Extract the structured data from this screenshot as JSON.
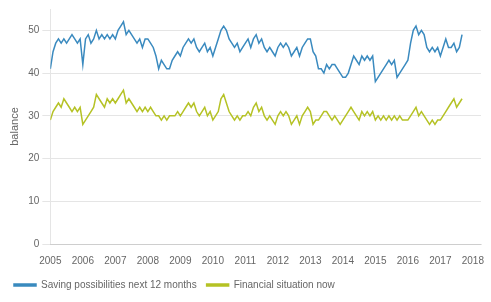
{
  "chart_data": {
    "type": "line",
    "y_label": "balance",
    "xlim": [
      2005.0,
      2018.25
    ],
    "xticks": [
      2005,
      2006,
      2007,
      2008,
      2009,
      2010,
      2011,
      2012,
      2013,
      2014,
      2015,
      2016,
      2017,
      2018
    ],
    "ylim": [
      0,
      55
    ],
    "yticks": [
      0,
      10,
      20,
      30,
      40,
      50
    ],
    "grid": "y",
    "legend": "lower left",
    "x": [
      2005,
      2005.083333,
      2005.166667,
      2005.25,
      2005.333333,
      2005.416667,
      2005.5,
      2005.583333,
      2005.666667,
      2005.75,
      2005.833333,
      2005.916667,
      2006,
      2006.083333,
      2006.166667,
      2006.25,
      2006.333333,
      2006.416667,
      2006.5,
      2006.583333,
      2006.666667,
      2006.75,
      2006.833333,
      2006.916667,
      2007,
      2007.083333,
      2007.166667,
      2007.25,
      2007.333333,
      2007.416667,
      2007.5,
      2007.583333,
      2007.666667,
      2007.75,
      2007.833333,
      2007.916667,
      2008,
      2008.083333,
      2008.166667,
      2008.25,
      2008.333333,
      2008.416667,
      2008.5,
      2008.583333,
      2008.666667,
      2008.75,
      2008.833333,
      2008.916667,
      2009,
      2009.083333,
      2009.166667,
      2009.25,
      2009.333333,
      2009.416667,
      2009.5,
      2009.583333,
      2009.666667,
      2009.75,
      2009.833333,
      2009.916667,
      2010,
      2010.083333,
      2010.166667,
      2010.25,
      2010.333333,
      2010.416667,
      2010.5,
      2010.583333,
      2010.666667,
      2010.75,
      2010.833333,
      2010.916667,
      2011,
      2011.083333,
      2011.166667,
      2011.25,
      2011.333333,
      2011.416667,
      2011.5,
      2011.583333,
      2011.666667,
      2011.75,
      2011.833333,
      2011.916667,
      2012,
      2012.083333,
      2012.166667,
      2012.25,
      2012.333333,
      2012.416667,
      2012.5,
      2012.583333,
      2012.666667,
      2012.75,
      2012.833333,
      2012.916667,
      2013,
      2013.083333,
      2013.166667,
      2013.25,
      2013.333333,
      2013.416667,
      2013.5,
      2013.583333,
      2013.666667,
      2013.75,
      2013.833333,
      2013.916667,
      2014,
      2014.083333,
      2014.166667,
      2014.25,
      2014.333333,
      2014.416667,
      2014.5,
      2014.583333,
      2014.666667,
      2014.75,
      2014.833333,
      2014.916667,
      2015,
      2015.083333,
      2015.166667,
      2015.25,
      2015.333333,
      2015.416667,
      2015.5,
      2015.583333,
      2015.666667,
      2015.75,
      2015.833333,
      2015.916667,
      2016,
      2016.083333,
      2016.166667,
      2016.25,
      2016.333333,
      2016.416667,
      2016.5,
      2016.583333,
      2016.666667,
      2016.75,
      2016.833333,
      2016.916667,
      2017,
      2017.083333,
      2017.166667,
      2017.25,
      2017.333333,
      2017.416667,
      2017.5,
      2017.583333,
      2017.666667
    ],
    "series": [
      {
        "name": "Saving possibilities next 12 months",
        "color": "#3a8abf",
        "values": [
          41,
          45,
          47,
          48,
          47,
          48,
          47,
          48,
          49,
          48,
          47,
          48,
          42,
          48,
          49,
          47,
          48,
          50,
          48,
          49,
          48,
          49,
          48,
          49,
          48,
          50,
          51,
          52,
          49,
          50,
          49,
          48,
          47,
          48,
          46,
          48,
          48,
          47,
          46,
          44,
          41,
          43,
          42,
          41,
          41,
          43,
          44,
          45,
          44,
          46,
          47,
          48,
          47,
          48,
          46,
          45,
          46,
          47,
          45,
          46,
          44,
          46,
          48,
          50,
          51,
          50,
          48,
          47,
          46,
          47,
          45,
          46,
          47,
          48,
          46,
          48,
          49,
          47,
          48,
          46,
          45,
          46,
          45,
          44,
          46,
          47,
          46,
          47,
          46,
          44,
          45,
          46,
          44,
          46,
          47,
          48,
          48,
          45,
          44,
          41,
          41,
          40,
          42,
          41,
          42,
          42,
          41,
          40,
          39,
          39,
          40,
          42,
          44,
          43,
          42,
          44,
          43,
          44,
          43,
          44,
          38,
          39,
          40,
          41,
          42,
          43,
          42,
          43,
          39,
          40,
          41,
          42,
          43,
          47,
          50,
          51,
          49,
          50,
          49,
          46,
          45,
          46,
          45,
          46,
          44,
          46,
          48,
          46,
          46,
          47,
          45,
          46,
          49
        ]
      },
      {
        "name": "Financial situation now",
        "color": "#b5c225",
        "values": [
          29,
          31,
          32,
          33,
          32,
          34,
          33,
          32,
          31,
          32,
          31,
          32,
          28,
          29,
          30,
          31,
          32,
          35,
          34,
          33,
          32,
          34,
          33,
          34,
          33,
          34,
          35,
          36,
          33,
          34,
          33,
          32,
          31,
          32,
          31,
          32,
          31,
          32,
          31,
          30,
          30,
          29,
          30,
          29,
          30,
          30,
          30,
          31,
          30,
          31,
          32,
          33,
          32,
          33,
          31,
          30,
          31,
          32,
          30,
          31,
          29,
          30,
          31,
          34,
          35,
          33,
          31,
          30,
          29,
          30,
          29,
          30,
          30,
          31,
          30,
          32,
          33,
          31,
          32,
          30,
          29,
          30,
          29,
          28,
          30,
          31,
          30,
          31,
          30,
          28,
          29,
          30,
          28,
          30,
          31,
          32,
          31,
          28,
          29,
          29,
          30,
          31,
          31,
          30,
          29,
          30,
          29,
          28,
          29,
          30,
          31,
          32,
          31,
          30,
          29,
          31,
          30,
          31,
          30,
          31,
          29,
          30,
          29,
          30,
          29,
          30,
          29,
          30,
          29,
          30,
          29,
          29,
          29,
          30,
          31,
          32,
          30,
          31,
          30,
          29,
          28,
          29,
          28,
          29,
          29,
          30,
          31,
          32,
          33,
          34,
          32,
          33,
          34
        ]
      }
    ]
  }
}
